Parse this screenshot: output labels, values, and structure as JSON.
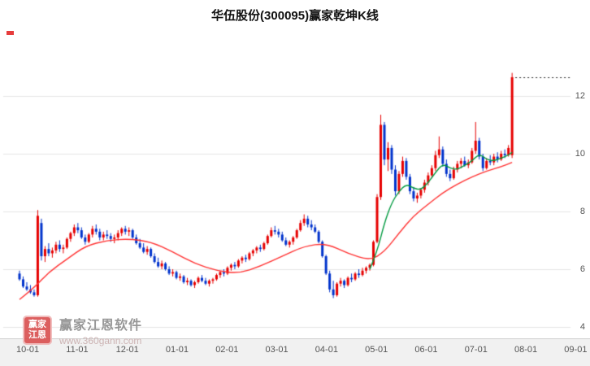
{
  "stock": {
    "name": "华伍股份",
    "code": "300095"
  },
  "watermark": {
    "logo_line1": "赢家",
    "logo_line2": "江恩",
    "brand": "赢家江恩软件",
    "url": "www.360gann.com"
  },
  "colors": {
    "up": "#e60000",
    "down": "#0033cc",
    "ma_red": "#ff3333",
    "ma_green": "#009a40",
    "grid": "#e4e4e4",
    "last_price": "#222222",
    "label": "#555555"
  },
  "chart_data": {
    "type": "candlestick",
    "title": "华伍股份(300095)赢家乾坤K线",
    "xlabel": "",
    "ylabel": "",
    "grid": true,
    "x_tick_labels": [
      "10-01",
      "11-01",
      "12-01",
      "01-01",
      "02-01",
      "03-01",
      "04-01",
      "05-01",
      "06-01",
      "07-01",
      "08-01",
      "09-01"
    ],
    "y_ticks": [
      4,
      6,
      8,
      10,
      12
    ],
    "ylim": [
      3.6,
      13.3
    ],
    "last_price_line": {
      "value": 12.65,
      "style": "dotted"
    },
    "series": [
      {
        "name": "candles",
        "type": "candle",
        "ohlc": [
          [
            5.85,
            5.95,
            5.6,
            5.65
          ],
          [
            5.65,
            5.75,
            5.35,
            5.4
          ],
          [
            5.4,
            5.55,
            5.25,
            5.3
          ],
          [
            5.3,
            5.45,
            5.15,
            5.2
          ],
          [
            5.2,
            5.3,
            5.05,
            5.1
          ],
          [
            5.1,
            8.05,
            5.05,
            7.85
          ],
          [
            7.6,
            7.75,
            6.3,
            6.45
          ],
          [
            6.45,
            6.8,
            6.25,
            6.7
          ],
          [
            6.7,
            6.9,
            6.45,
            6.55
          ],
          [
            6.55,
            6.75,
            6.4,
            6.65
          ],
          [
            6.65,
            6.95,
            6.55,
            6.85
          ],
          [
            6.85,
            7.0,
            6.6,
            6.7
          ],
          [
            6.7,
            6.85,
            6.55,
            6.75
          ],
          [
            6.75,
            7.1,
            6.7,
            7.05
          ],
          [
            7.05,
            7.3,
            6.95,
            7.25
          ],
          [
            7.25,
            7.55,
            7.15,
            7.45
          ],
          [
            7.45,
            7.6,
            7.25,
            7.35
          ],
          [
            7.35,
            7.45,
            7.05,
            7.1
          ],
          [
            7.1,
            7.2,
            6.85,
            6.95
          ],
          [
            6.95,
            7.25,
            6.9,
            7.2
          ],
          [
            7.2,
            7.5,
            7.1,
            7.4
          ],
          [
            7.4,
            7.55,
            7.2,
            7.3
          ],
          [
            7.3,
            7.4,
            7.0,
            7.1
          ],
          [
            7.1,
            7.3,
            7.0,
            7.2
          ],
          [
            7.2,
            7.35,
            7.05,
            7.15
          ],
          [
            7.15,
            7.25,
            6.95,
            7.05
          ],
          [
            7.05,
            7.2,
            6.9,
            7.1
          ],
          [
            7.1,
            7.35,
            7.0,
            7.25
          ],
          [
            7.25,
            7.45,
            7.15,
            7.4
          ],
          [
            7.4,
            7.5,
            7.2,
            7.3
          ],
          [
            7.3,
            7.45,
            7.15,
            7.35
          ],
          [
            7.35,
            7.4,
            7.05,
            7.1
          ],
          [
            7.1,
            7.2,
            6.85,
            6.9
          ],
          [
            6.9,
            7.05,
            6.7,
            6.75
          ],
          [
            6.75,
            6.9,
            6.55,
            6.6
          ],
          [
            6.6,
            6.8,
            6.5,
            6.7
          ],
          [
            6.7,
            6.75,
            6.4,
            6.45
          ],
          [
            6.45,
            6.55,
            6.2,
            6.25
          ],
          [
            6.25,
            6.4,
            6.05,
            6.1
          ],
          [
            6.1,
            6.3,
            6.0,
            6.2
          ],
          [
            6.2,
            6.25,
            5.95,
            6.0
          ],
          [
            6.0,
            6.1,
            5.8,
            5.85
          ],
          [
            5.85,
            6.0,
            5.75,
            5.9
          ],
          [
            5.9,
            5.95,
            5.65,
            5.7
          ],
          [
            5.7,
            5.85,
            5.6,
            5.75
          ],
          [
            5.75,
            5.8,
            5.5,
            5.55
          ],
          [
            5.55,
            5.7,
            5.45,
            5.6
          ],
          [
            5.6,
            5.65,
            5.4,
            5.45
          ],
          [
            5.45,
            5.6,
            5.35,
            5.55
          ],
          [
            5.55,
            5.75,
            5.5,
            5.7
          ],
          [
            5.7,
            5.8,
            5.55,
            5.6
          ],
          [
            5.6,
            5.7,
            5.45,
            5.5
          ],
          [
            5.5,
            5.65,
            5.4,
            5.6
          ],
          [
            5.6,
            5.7,
            5.5,
            5.65
          ],
          [
            5.65,
            5.85,
            5.6,
            5.8
          ],
          [
            5.8,
            5.95,
            5.7,
            5.9
          ],
          [
            5.9,
            6.0,
            5.75,
            5.85
          ],
          [
            5.85,
            6.1,
            5.8,
            6.05
          ],
          [
            6.05,
            6.2,
            5.95,
            6.15
          ],
          [
            6.15,
            6.25,
            6.0,
            6.1
          ],
          [
            6.1,
            6.35,
            6.05,
            6.3
          ],
          [
            6.3,
            6.45,
            6.2,
            6.4
          ],
          [
            6.4,
            6.5,
            6.25,
            6.35
          ],
          [
            6.35,
            6.6,
            6.3,
            6.55
          ],
          [
            6.55,
            6.7,
            6.45,
            6.65
          ],
          [
            6.65,
            6.8,
            6.55,
            6.75
          ],
          [
            6.75,
            6.85,
            6.6,
            6.7
          ],
          [
            6.7,
            6.95,
            6.65,
            6.9
          ],
          [
            6.9,
            7.2,
            6.85,
            7.15
          ],
          [
            7.15,
            7.45,
            7.1,
            7.35
          ],
          [
            7.35,
            7.5,
            7.2,
            7.3
          ],
          [
            7.3,
            7.4,
            7.1,
            7.2
          ],
          [
            7.2,
            7.3,
            6.95,
            7.0
          ],
          [
            7.0,
            7.1,
            6.8,
            6.85
          ],
          [
            6.85,
            7.0,
            6.75,
            6.95
          ],
          [
            6.95,
            7.15,
            6.85,
            7.1
          ],
          [
            7.1,
            7.4,
            7.05,
            7.35
          ],
          [
            7.35,
            7.7,
            7.3,
            7.6
          ],
          [
            7.6,
            7.9,
            7.5,
            7.75
          ],
          [
            7.75,
            7.85,
            7.45,
            7.55
          ],
          [
            7.55,
            7.7,
            7.35,
            7.45
          ],
          [
            7.45,
            7.55,
            7.25,
            7.3
          ],
          [
            7.3,
            7.35,
            6.9,
            6.95
          ],
          [
            6.95,
            7.0,
            6.4,
            6.45
          ],
          [
            6.45,
            6.5,
            5.8,
            5.85
          ],
          [
            5.85,
            5.95,
            5.2,
            5.3
          ],
          [
            5.3,
            5.6,
            5.0,
            5.1
          ],
          [
            5.1,
            5.55,
            5.05,
            5.5
          ],
          [
            5.5,
            5.7,
            5.4,
            5.6
          ],
          [
            5.6,
            5.65,
            5.35,
            5.45
          ],
          [
            5.45,
            5.75,
            5.4,
            5.7
          ],
          [
            5.7,
            5.85,
            5.55,
            5.65
          ],
          [
            5.65,
            5.9,
            5.6,
            5.85
          ],
          [
            5.85,
            6.0,
            5.7,
            5.8
          ],
          [
            5.8,
            6.05,
            5.75,
            5.95
          ],
          [
            5.95,
            6.1,
            5.85,
            6.05
          ],
          [
            6.05,
            6.2,
            5.95,
            6.15
          ],
          [
            6.15,
            7.0,
            6.1,
            6.95
          ],
          [
            6.95,
            8.6,
            6.9,
            8.5
          ],
          [
            8.5,
            11.35,
            8.4,
            11.0
          ],
          [
            11.0,
            11.1,
            9.6,
            9.8
          ],
          [
            9.8,
            10.4,
            9.4,
            10.2
          ],
          [
            10.2,
            10.3,
            9.3,
            9.45
          ],
          [
            9.45,
            9.6,
            8.55,
            8.7
          ],
          [
            8.7,
            9.4,
            8.6,
            9.3
          ],
          [
            9.3,
            9.9,
            9.2,
            9.75
          ],
          [
            9.75,
            9.85,
            9.1,
            9.2
          ],
          [
            9.2,
            9.3,
            8.6,
            8.7
          ],
          [
            8.7,
            8.85,
            8.35,
            8.45
          ],
          [
            8.45,
            8.65,
            8.3,
            8.55
          ],
          [
            8.55,
            8.8,
            8.45,
            8.75
          ],
          [
            8.75,
            9.1,
            8.65,
            9.0
          ],
          [
            9.0,
            9.35,
            8.9,
            9.25
          ],
          [
            9.25,
            9.6,
            9.15,
            9.5
          ],
          [
            9.5,
            10.1,
            9.4,
            9.95
          ],
          [
            9.95,
            10.6,
            9.85,
            10.15
          ],
          [
            10.15,
            10.25,
            9.55,
            9.65
          ],
          [
            9.65,
            9.8,
            9.2,
            9.3
          ],
          [
            9.3,
            9.45,
            9.05,
            9.15
          ],
          [
            9.15,
            9.55,
            9.1,
            9.45
          ],
          [
            9.45,
            9.75,
            9.35,
            9.65
          ],
          [
            9.65,
            9.85,
            9.5,
            9.75
          ],
          [
            9.75,
            9.9,
            9.55,
            9.6
          ],
          [
            9.6,
            9.8,
            9.5,
            9.7
          ],
          [
            9.7,
            10.2,
            9.65,
            10.1
          ],
          [
            10.1,
            11.1,
            10.0,
            10.45
          ],
          [
            10.45,
            10.55,
            9.8,
            9.9
          ],
          [
            9.9,
            10.0,
            9.4,
            9.5
          ],
          [
            9.5,
            9.85,
            9.45,
            9.75
          ],
          [
            9.75,
            9.95,
            9.6,
            9.7
          ],
          [
            9.7,
            10.0,
            9.6,
            9.9
          ],
          [
            9.9,
            10.05,
            9.7,
            9.8
          ],
          [
            9.8,
            10.1,
            9.75,
            10.0
          ],
          [
            10.0,
            10.15,
            9.85,
            9.95
          ],
          [
            9.95,
            10.3,
            9.9,
            10.2
          ],
          [
            9.95,
            12.8,
            9.85,
            12.65
          ]
        ]
      },
      {
        "name": "ma_red",
        "type": "line",
        "points": [
          [
            0,
            4.95
          ],
          [
            4,
            5.35
          ],
          [
            8,
            5.9
          ],
          [
            13,
            6.35
          ],
          [
            18,
            6.8
          ],
          [
            24,
            7.0
          ],
          [
            30,
            7.05
          ],
          [
            36,
            6.95
          ],
          [
            42,
            6.6
          ],
          [
            48,
            6.2
          ],
          [
            54,
            5.95
          ],
          [
            60,
            5.85
          ],
          [
            66,
            6.1
          ],
          [
            72,
            6.45
          ],
          [
            78,
            6.8
          ],
          [
            84,
            6.9
          ],
          [
            90,
            6.55
          ],
          [
            96,
            6.3
          ],
          [
            100,
            6.6
          ],
          [
            104,
            7.25
          ],
          [
            108,
            7.85
          ],
          [
            112,
            8.25
          ],
          [
            116,
            8.65
          ],
          [
            120,
            8.95
          ],
          [
            124,
            9.2
          ],
          [
            128,
            9.4
          ],
          [
            132,
            9.55
          ],
          [
            135,
            9.7
          ]
        ]
      },
      {
        "name": "ma_green",
        "type": "line",
        "points": [
          [
            96,
            6.0
          ],
          [
            98,
            6.6
          ],
          [
            100,
            7.6
          ],
          [
            102,
            8.3
          ],
          [
            104,
            8.7
          ],
          [
            106,
            8.95
          ],
          [
            108,
            8.8
          ],
          [
            110,
            8.75
          ],
          [
            112,
            9.0
          ],
          [
            114,
            9.35
          ],
          [
            116,
            9.65
          ],
          [
            118,
            9.5
          ],
          [
            120,
            9.45
          ],
          [
            122,
            9.6
          ],
          [
            124,
            9.75
          ],
          [
            126,
            10.0
          ],
          [
            128,
            9.8
          ],
          [
            130,
            9.75
          ],
          [
            132,
            9.85
          ],
          [
            134,
            9.95
          ],
          [
            135,
            10.05
          ]
        ]
      }
    ]
  }
}
